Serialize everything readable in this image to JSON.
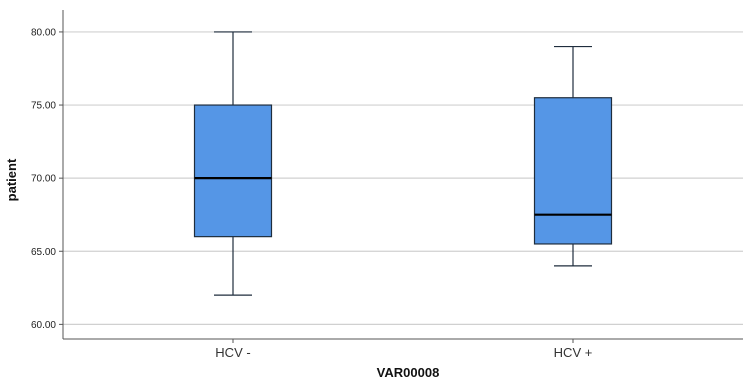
{
  "chart_data": {
    "type": "boxplot",
    "xlabel": "VAR00008",
    "ylabel": "patient",
    "ylim": [
      59,
      81.5
    ],
    "yticks": [
      60,
      65,
      70,
      75,
      80
    ],
    "ytick_labels": [
      "60.00",
      "65.00",
      "70.00",
      "75.00",
      "80.00"
    ],
    "grid": true,
    "categories": [
      "HCV -",
      "HCV +"
    ],
    "boxes": [
      {
        "category": "HCV -",
        "min": 62,
        "q1": 66,
        "median": 70,
        "q3": 75,
        "max": 80
      },
      {
        "category": "HCV +",
        "min": 64,
        "q1": 65.5,
        "median": 67.5,
        "q3": 75.5,
        "max": 79
      }
    ],
    "colors": {
      "box_fill": "#5596E6",
      "box_stroke": "#1f2d3d",
      "grid": "#d0d0d0",
      "axis": "#555555"
    }
  }
}
